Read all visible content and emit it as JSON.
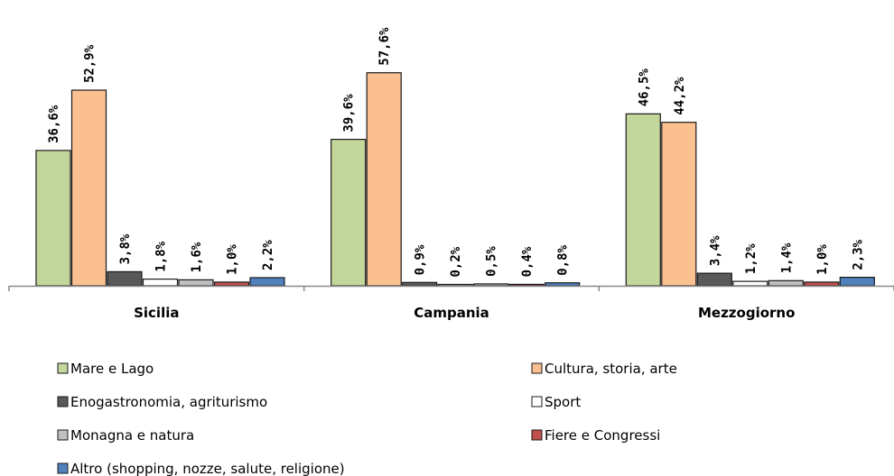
{
  "chart_data": {
    "type": "bar",
    "categories": [
      "Sicilia",
      "Campania",
      "Mezzogiorno"
    ],
    "series": [
      {
        "name": "Mare e Lago",
        "values": [
          36.6,
          39.6,
          46.5
        ],
        "labels": [
          "36,6%",
          "39,6%",
          "46,5%"
        ],
        "color": "#c3d69b"
      },
      {
        "name": "Cultura, storia, arte",
        "values": [
          52.9,
          57.6,
          44.2
        ],
        "labels": [
          "52,9%",
          "57,6%",
          "44,2%"
        ],
        "color": "#fac090"
      },
      {
        "name": "Enogastronomia, agriturismo",
        "values": [
          3.8,
          0.9,
          3.4
        ],
        "labels": [
          "3,8%",
          "0,9%",
          "3,4%"
        ],
        "color": "#595959"
      },
      {
        "name": "Sport",
        "values": [
          1.8,
          0.2,
          1.2
        ],
        "labels": [
          "1,8%",
          "0,2%",
          "1,2%"
        ],
        "color": "#ffffff"
      },
      {
        "name": "Monagna e natura",
        "values": [
          1.6,
          0.5,
          1.4
        ],
        "labels": [
          "1,6%",
          "0,5%",
          "1,4%"
        ],
        "color": "#bfbfbf"
      },
      {
        "name": "Fiere e Congressi",
        "values": [
          1.0,
          0.4,
          1.0
        ],
        "labels": [
          "1,0%",
          "0,4%",
          "1,0%"
        ],
        "color": "#c0504d"
      },
      {
        "name": "Altro (shopping, nozze, salute, religione)",
        "values": [
          2.2,
          0.8,
          2.3
        ],
        "labels": [
          "2,2%",
          "0,8%",
          "2,3%"
        ],
        "color": "#4f81bd"
      }
    ],
    "ylim": [
      0,
      60
    ],
    "grid": false,
    "legend_position": "bottom"
  }
}
